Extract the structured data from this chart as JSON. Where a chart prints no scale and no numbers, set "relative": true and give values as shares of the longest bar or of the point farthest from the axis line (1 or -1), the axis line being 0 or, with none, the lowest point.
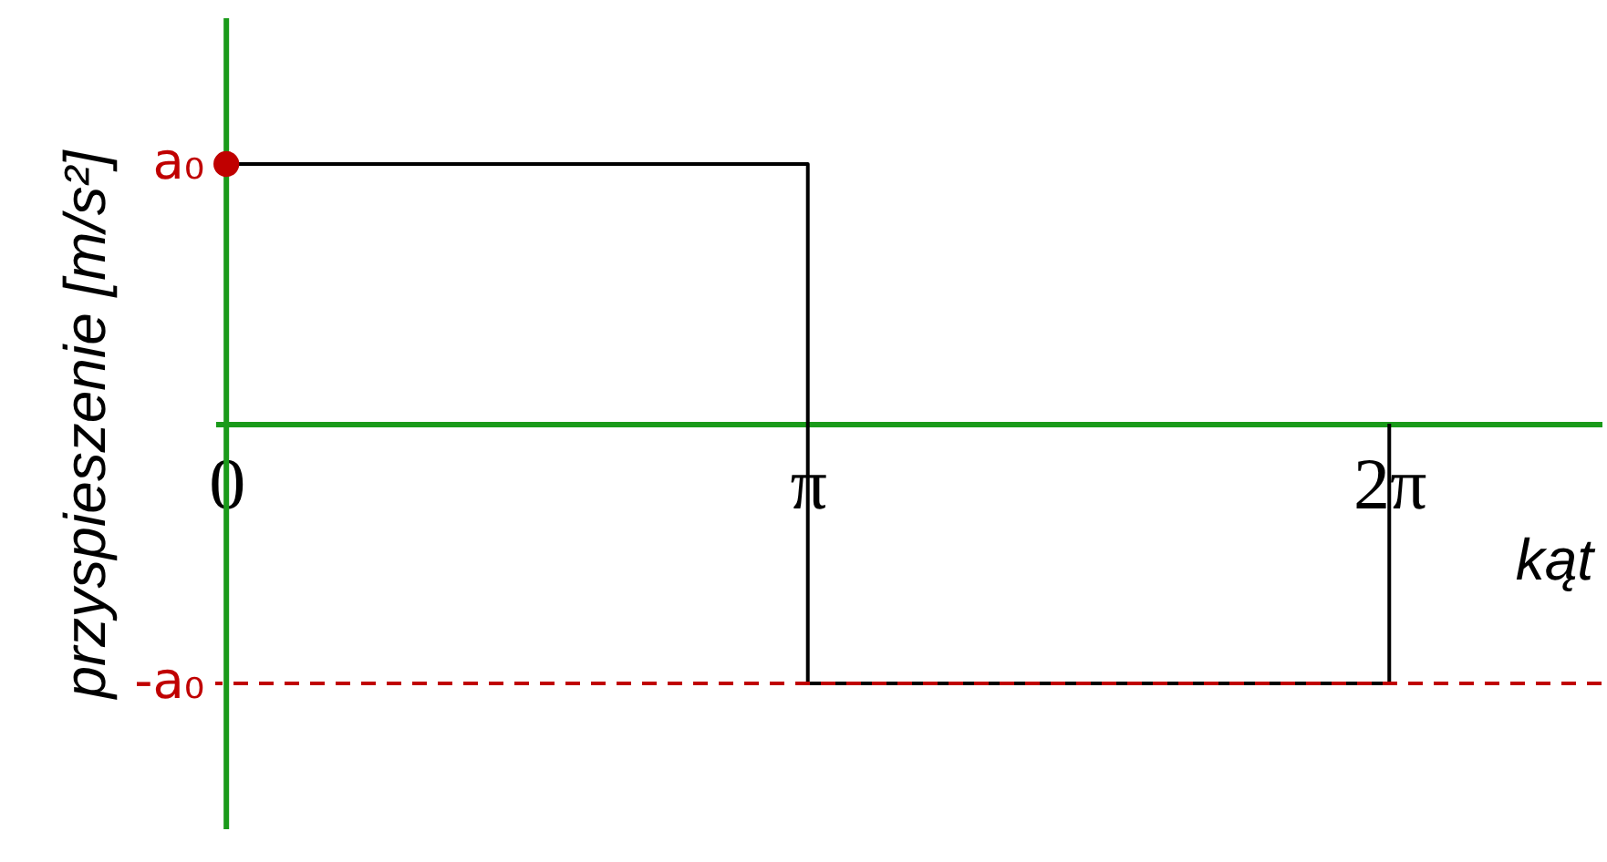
{
  "chart_data": {
    "type": "step",
    "relative": true,
    "xlabel": "kąt",
    "ylabel": "przyspieszenie [m/s²]",
    "x": [
      0,
      3.1416,
      6.2832
    ],
    "series": [
      {
        "color": "#000000",
        "values": [
          1,
          -1,
          0
        ]
      }
    ],
    "xlim": [
      -0.06,
      7.43
    ],
    "xticks": [
      {
        "value": 0,
        "label": "0"
      },
      {
        "value": 3.1416,
        "label": "π"
      },
      {
        "value": 6.2832,
        "label": "2π"
      }
    ],
    "annotations": [
      {
        "text": "a₀",
        "x": 0,
        "y": 1
      },
      {
        "text": "-a₀",
        "x": 0,
        "y": -1
      }
    ],
    "ref_lines": [
      {
        "axis": "y",
        "value": -1,
        "color": "#c00000",
        "line_style": "dashed"
      },
      {
        "axis": "x",
        "value": 0,
        "color": "#1a9a1a",
        "line_style": "solid"
      }
    ],
    "grid": false
  }
}
